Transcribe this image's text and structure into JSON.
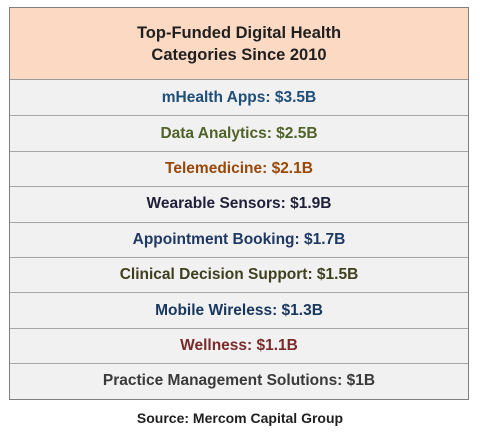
{
  "chart_data": {
    "type": "table",
    "title_line1": "Top-Funded Digital Health",
    "title_line2": "Categories Since 2010",
    "rows": [
      {
        "text": "mHealth Apps: $3.5B",
        "category": "mHealth Apps",
        "value": 3.5,
        "color": "#1f4e79"
      },
      {
        "text": "Data Analytics: $2.5B",
        "category": "Data Analytics",
        "value": 2.5,
        "color": "#4f6228"
      },
      {
        "text": "Telemedicine: $2.1B",
        "category": "Telemedicine",
        "value": 2.1,
        "color": "#984807"
      },
      {
        "text": "Wearable Sensors: $1.9B",
        "category": "Wearable Sensors",
        "value": 1.9,
        "color": "#1f1f3a"
      },
      {
        "text": "Appointment Booking: $1.7B",
        "category": "Appointment Booking",
        "value": 1.7,
        "color": "#1f3864"
      },
      {
        "text": "Clinical Decision Support: $1.5B",
        "category": "Clinical Decision Support",
        "value": 1.5,
        "color": "#3f3f1f"
      },
      {
        "text": "Mobile Wireless: $1.3B",
        "category": "Mobile Wireless",
        "value": 1.3,
        "color": "#17375e"
      },
      {
        "text": "Wellness: $1.1B",
        "category": "Wellness",
        "value": 1.1,
        "color": "#7b2a2a"
      },
      {
        "text": "Practice Management Solutions: $1B",
        "category": "Practice Management Solutions",
        "value": 1.0,
        "color": "#3a3a3a"
      }
    ],
    "source": "Source: Mercom Capital Group"
  }
}
